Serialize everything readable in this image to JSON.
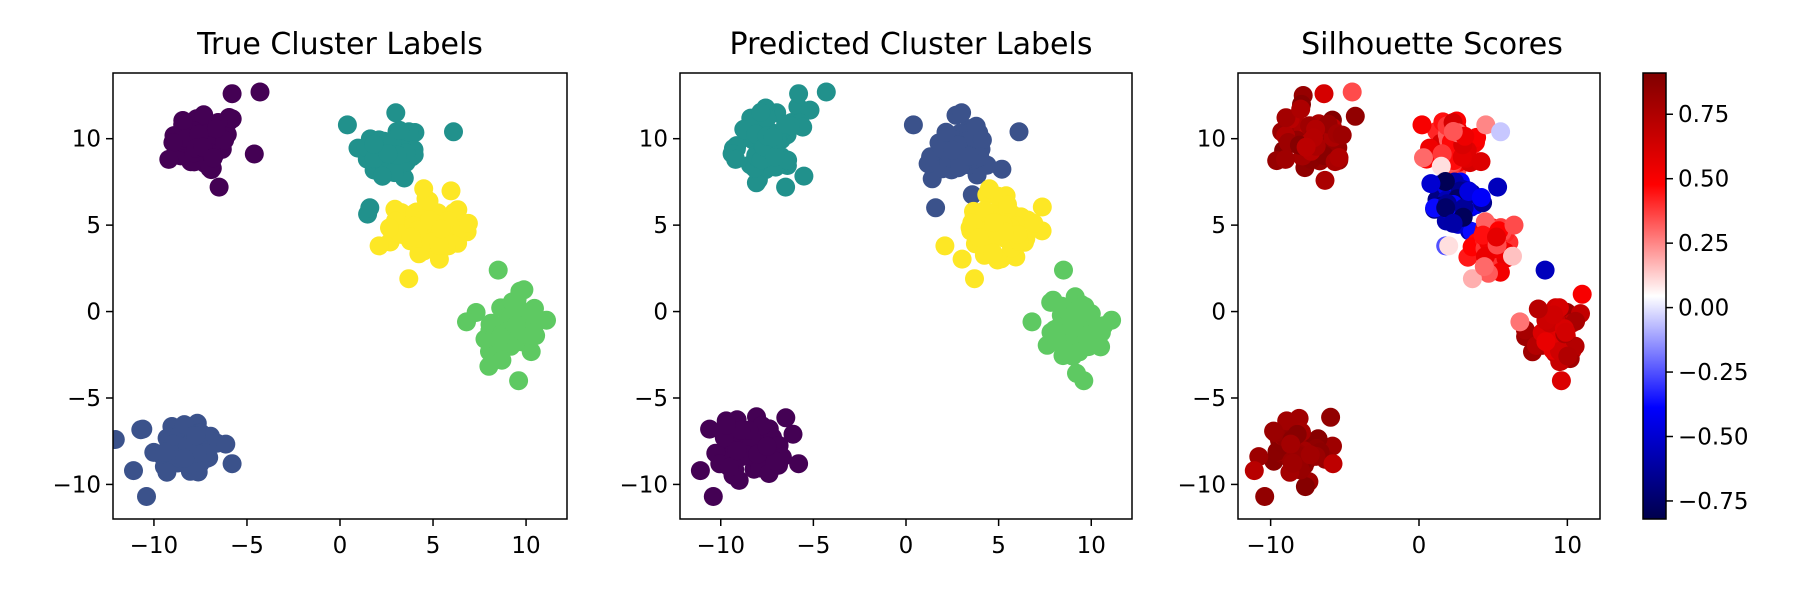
{
  "chart_data": [
    {
      "type": "scatter",
      "title": "True Cluster Labels",
      "xlim": [
        -12.2,
        12.2
      ],
      "ylim": [
        -12.0,
        13.8
      ],
      "xticks": [
        -10,
        -5,
        0,
        5,
        10
      ],
      "yticks": [
        10,
        5,
        0,
        -5,
        -10
      ],
      "color_by": "label",
      "colormap": "viridis",
      "clusters": [
        {
          "label": 0,
          "color": "#440154",
          "center": [
            -7.2,
            9.8
          ],
          "spread": [
            1.1,
            1.1
          ],
          "extra_points": [
            [
              -5.8,
              12.6
            ],
            [
              -4.3,
              12.7
            ],
            [
              -9.2,
              8.8
            ],
            [
              -6.5,
              7.2
            ]
          ]
        },
        {
          "label": 1,
          "color": "#3b528b",
          "center": [
            -8.3,
            -7.8
          ],
          "spread": [
            1.1,
            1.0
          ],
          "extra_points": [
            [
              -11.1,
              -9.2
            ],
            [
              -10.4,
              -10.7
            ],
            [
              -5.8,
              -8.8
            ],
            [
              -10.6,
              -6.8
            ]
          ]
        },
        {
          "label": 2,
          "color": "#21918c",
          "center": [
            2.8,
            9.2
          ],
          "spread": [
            1.0,
            1.0
          ],
          "extra_points": [
            [
              0.4,
              10.8
            ],
            [
              3.0,
              11.5
            ],
            [
              6.1,
              10.4
            ],
            [
              1.6,
              6.0
            ]
          ]
        },
        {
          "label": 3,
          "color": "#5ec962",
          "center": [
            9.2,
            -1.0
          ],
          "spread": [
            0.9,
            1.1
          ],
          "extra_points": [
            [
              8.5,
              2.4
            ],
            [
              9.6,
              -4.0
            ],
            [
              6.8,
              -0.6
            ],
            [
              11.1,
              -0.5
            ]
          ]
        },
        {
          "label": 4,
          "color": "#fde725",
          "center": [
            4.8,
            4.8
          ],
          "spread": [
            1.0,
            1.1
          ],
          "extra_points": [
            [
              2.1,
              3.8
            ],
            [
              3.7,
              1.9
            ],
            [
              6.9,
              5.1
            ],
            [
              4.5,
              7.1
            ]
          ]
        }
      ]
    },
    {
      "type": "scatter",
      "title": "Predicted Cluster Labels",
      "xlim": [
        -12.2,
        12.2
      ],
      "ylim": [
        -12.0,
        13.8
      ],
      "xticks": [
        -10,
        -5,
        0,
        5,
        10
      ],
      "yticks": [
        10,
        5,
        0,
        -5,
        -10
      ],
      "color_by": "predicted label",
      "colormap": "viridis",
      "clusters": [
        {
          "label": 0,
          "color": "#440154",
          "center": [
            -8.3,
            -7.8
          ],
          "spread": [
            1.1,
            1.0
          ],
          "extra_points": [
            [
              -11.1,
              -9.2
            ],
            [
              -10.4,
              -10.7
            ],
            [
              -5.8,
              -8.8
            ],
            [
              -10.6,
              -6.8
            ]
          ]
        },
        {
          "label": 1,
          "color": "#3b528b",
          "center": [
            2.8,
            9.2
          ],
          "spread": [
            1.0,
            1.0
          ],
          "extra_points": [
            [
              0.4,
              10.8
            ],
            [
              3.0,
              11.5
            ],
            [
              6.1,
              10.4
            ],
            [
              1.6,
              6.0
            ]
          ]
        },
        {
          "label": 2,
          "color": "#21918c",
          "center": [
            -7.2,
            9.8
          ],
          "spread": [
            1.1,
            1.1
          ],
          "extra_points": [
            [
              -5.8,
              12.6
            ],
            [
              -4.3,
              12.7
            ],
            [
              -9.2,
              8.8
            ],
            [
              -6.5,
              7.2
            ]
          ]
        },
        {
          "label": 3,
          "color": "#5ec962",
          "center": [
            9.2,
            -1.0
          ],
          "spread": [
            0.9,
            1.1
          ],
          "extra_points": [
            [
              8.5,
              2.4
            ],
            [
              9.6,
              -4.0
            ],
            [
              6.8,
              -0.6
            ],
            [
              11.1,
              -0.5
            ]
          ]
        },
        {
          "label": 4,
          "color": "#fde725",
          "center": [
            4.8,
            4.8
          ],
          "spread": [
            1.0,
            1.1
          ],
          "extra_points": [
            [
              2.1,
              3.8
            ],
            [
              3.7,
              1.9
            ],
            [
              6.9,
              5.1
            ],
            [
              4.5,
              7.1
            ]
          ]
        }
      ]
    },
    {
      "type": "scatter",
      "title": "Silhouette Scores",
      "xlim": [
        -12.2,
        12.2
      ],
      "ylim": [
        -12.0,
        13.8
      ],
      "xticks": [
        -10,
        0,
        10
      ],
      "yticks": [
        10,
        5,
        0,
        -5,
        -10
      ],
      "color_by": "silhouette score",
      "colormap": "seismic",
      "colorbar": {
        "range": [
          -0.82,
          0.91
        ],
        "ticks": [
          0.75,
          0.5,
          0.25,
          0.0,
          -0.25,
          -0.5,
          -0.75
        ],
        "tick_labels": [
          "0.75",
          "0.50",
          "0.25",
          "0.00",
          "−0.25",
          "−0.50",
          "−0.75"
        ]
      },
      "clusters": [
        {
          "center": [
            -7.2,
            9.8
          ],
          "spread": [
            1.1,
            1.1
          ],
          "score_range": [
            0.7,
            0.9
          ],
          "extra_points": [
            [
              -6.4,
              12.6
            ],
            [
              -4.5,
              12.7
            ],
            [
              -9.0,
              8.8
            ]
          ],
          "extra_scores": [
            0.62,
            0.35,
            0.8
          ]
        },
        {
          "center": [
            -8.3,
            -7.8
          ],
          "spread": [
            1.1,
            1.0
          ],
          "score_range": [
            0.78,
            0.9
          ],
          "extra_points": [
            [
              -11.1,
              -9.2
            ],
            [
              -10.4,
              -10.7
            ],
            [
              -5.8,
              -8.8
            ]
          ],
          "extra_scores": [
            0.72,
            0.85,
            0.7
          ]
        },
        {
          "center": [
            2.4,
            9.6
          ],
          "spread": [
            0.9,
            0.8
          ],
          "score_range": [
            0.3,
            0.62
          ],
          "extra_points": [
            [
              0.2,
              10.8
            ],
            [
              4.5,
              10.8
            ],
            [
              5.5,
              10.4
            ],
            [
              0.3,
              8.9
            ],
            [
              1.5,
              8.4
            ]
          ],
          "extra_scores": [
            0.5,
            0.25,
            -0.05,
            0.3,
            0.1
          ]
        },
        {
          "center": [
            2.8,
            6.4
          ],
          "spread": [
            1.0,
            0.8
          ],
          "score_range": [
            -0.8,
            -0.35
          ],
          "extra_points": [
            [
              0.8,
              7.4
            ],
            [
              1.8,
              6.0
            ],
            [
              2.3,
              5.1
            ],
            [
              5.3,
              7.2
            ],
            [
              4.2,
              6.6
            ]
          ],
          "extra_scores": [
            -0.5,
            -0.75,
            -0.6,
            -0.55,
            -0.4
          ]
        },
        {
          "center": [
            4.8,
            4.0
          ],
          "spread": [
            0.8,
            0.8
          ],
          "score_range": [
            0.3,
            0.6
          ],
          "extra_points": [
            [
              1.8,
              3.8
            ],
            [
              2.0,
              3.8
            ],
            [
              3.6,
              1.9
            ],
            [
              4.4,
              2.6
            ],
            [
              6.3,
              3.2
            ],
            [
              6.4,
              5.0
            ]
          ],
          "extra_scores": [
            -0.25,
            0.1,
            0.18,
            0.3,
            0.15,
            0.35
          ]
        },
        {
          "center": [
            9.3,
            -1.2
          ],
          "spread": [
            0.9,
            1.0
          ],
          "score_range": [
            0.55,
            0.82
          ],
          "extra_points": [
            [
              8.5,
              2.4
            ],
            [
              9.6,
              -4.0
            ],
            [
              6.8,
              -0.6
            ],
            [
              11.0,
              1.0
            ]
          ],
          "extra_scores": [
            -0.55,
            0.6,
            0.28,
            0.5
          ]
        }
      ]
    }
  ]
}
